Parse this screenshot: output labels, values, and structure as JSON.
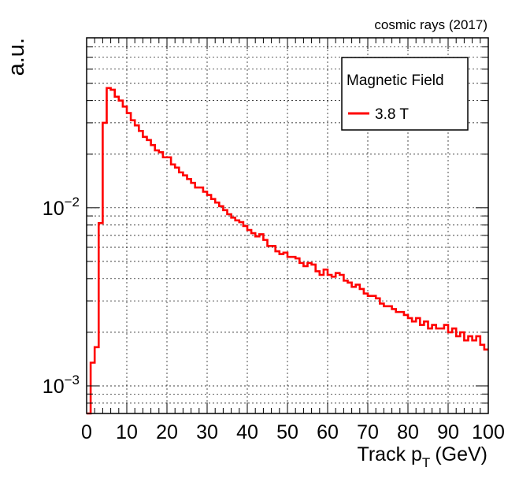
{
  "header": {
    "annotation": "cosmic rays (2017)"
  },
  "legend": {
    "title": "Magnetic Field",
    "entry": "3.8 T"
  },
  "chart_data": {
    "type": "histogram-step",
    "xlabel": "Track p",
    "xlabel_sub": "T",
    "xlabel_unit": "(GeV)",
    "ylabel": "a.u.",
    "xlim": [
      0,
      100
    ],
    "ylim": [
      0.0007,
      0.09
    ],
    "yscale": "log",
    "grid": true,
    "legend_position": "top-right",
    "color": "#ff0000",
    "x_ticks": [
      0,
      10,
      20,
      30,
      40,
      50,
      60,
      70,
      80,
      90,
      100
    ],
    "y_ticks": [
      {
        "value": 0.01,
        "base": "10",
        "exp": "−2"
      },
      {
        "value": 0.001,
        "base": "10",
        "exp": "−3"
      }
    ],
    "bin_width": 1,
    "series": [
      {
        "name": "3.8 T",
        "x": [
          0.5,
          1.5,
          2.5,
          3.5,
          4.5,
          5.5,
          6.5,
          7.5,
          8.5,
          9.5,
          10.5,
          11.5,
          12.5,
          13.5,
          14.5,
          15.5,
          16.5,
          17.5,
          18.5,
          19.5,
          20.5,
          21.5,
          22.5,
          23.5,
          24.5,
          25.5,
          26.5,
          27.5,
          28.5,
          29.5,
          30.5,
          31.5,
          32.5,
          33.5,
          34.5,
          35.5,
          36.5,
          37.5,
          38.5,
          39.5,
          40.5,
          41.5,
          42.5,
          43.5,
          44.5,
          45.5,
          46.5,
          47.5,
          48.5,
          49.5,
          50.5,
          51.5,
          52.5,
          53.5,
          54.5,
          55.5,
          56.5,
          57.5,
          58.5,
          59.5,
          60.5,
          61.5,
          62.5,
          63.5,
          64.5,
          65.5,
          66.5,
          67.5,
          68.5,
          69.5,
          70.5,
          71.5,
          72.5,
          73.5,
          74.5,
          75.5,
          76.5,
          77.5,
          78.5,
          79.5,
          80.5,
          81.5,
          82.5,
          83.5,
          84.5,
          85.5,
          86.5,
          87.5,
          88.5,
          89.5,
          90.5,
          91.5,
          92.5,
          93.5,
          94.5,
          95.5,
          96.5,
          97.5,
          98.5,
          99.5
        ],
        "values": [
          0.0007,
          0.00135,
          0.00165,
          0.0082,
          0.03,
          0.047,
          0.046,
          0.042,
          0.04,
          0.037,
          0.034,
          0.031,
          0.029,
          0.027,
          0.025,
          0.024,
          0.0225,
          0.021,
          0.0205,
          0.0192,
          0.0192,
          0.0175,
          0.0168,
          0.0158,
          0.0152,
          0.0145,
          0.0138,
          0.013,
          0.013,
          0.0123,
          0.0118,
          0.0112,
          0.0107,
          0.0102,
          0.0097,
          0.0092,
          0.0088,
          0.0085,
          0.0083,
          0.0079,
          0.0075,
          0.0072,
          0.0069,
          0.0071,
          0.0066,
          0.0061,
          0.0061,
          0.0057,
          0.0055,
          0.0056,
          0.0053,
          0.0053,
          0.0052,
          0.0049,
          0.0047,
          0.0049,
          0.0048,
          0.0044,
          0.0042,
          0.0045,
          0.0042,
          0.0041,
          0.0043,
          0.0042,
          0.0039,
          0.0038,
          0.0036,
          0.0037,
          0.0035,
          0.0033,
          0.0032,
          0.0032,
          0.0031,
          0.0029,
          0.0028,
          0.0028,
          0.0027,
          0.0026,
          0.0026,
          0.0025,
          0.0024,
          0.0023,
          0.0024,
          0.0022,
          0.0023,
          0.0021,
          0.0022,
          0.0021,
          0.0021,
          0.0022,
          0.002,
          0.0021,
          0.0019,
          0.002,
          0.0018,
          0.0019,
          0.0018,
          0.0019,
          0.0017,
          0.0016
        ]
      }
    ]
  }
}
